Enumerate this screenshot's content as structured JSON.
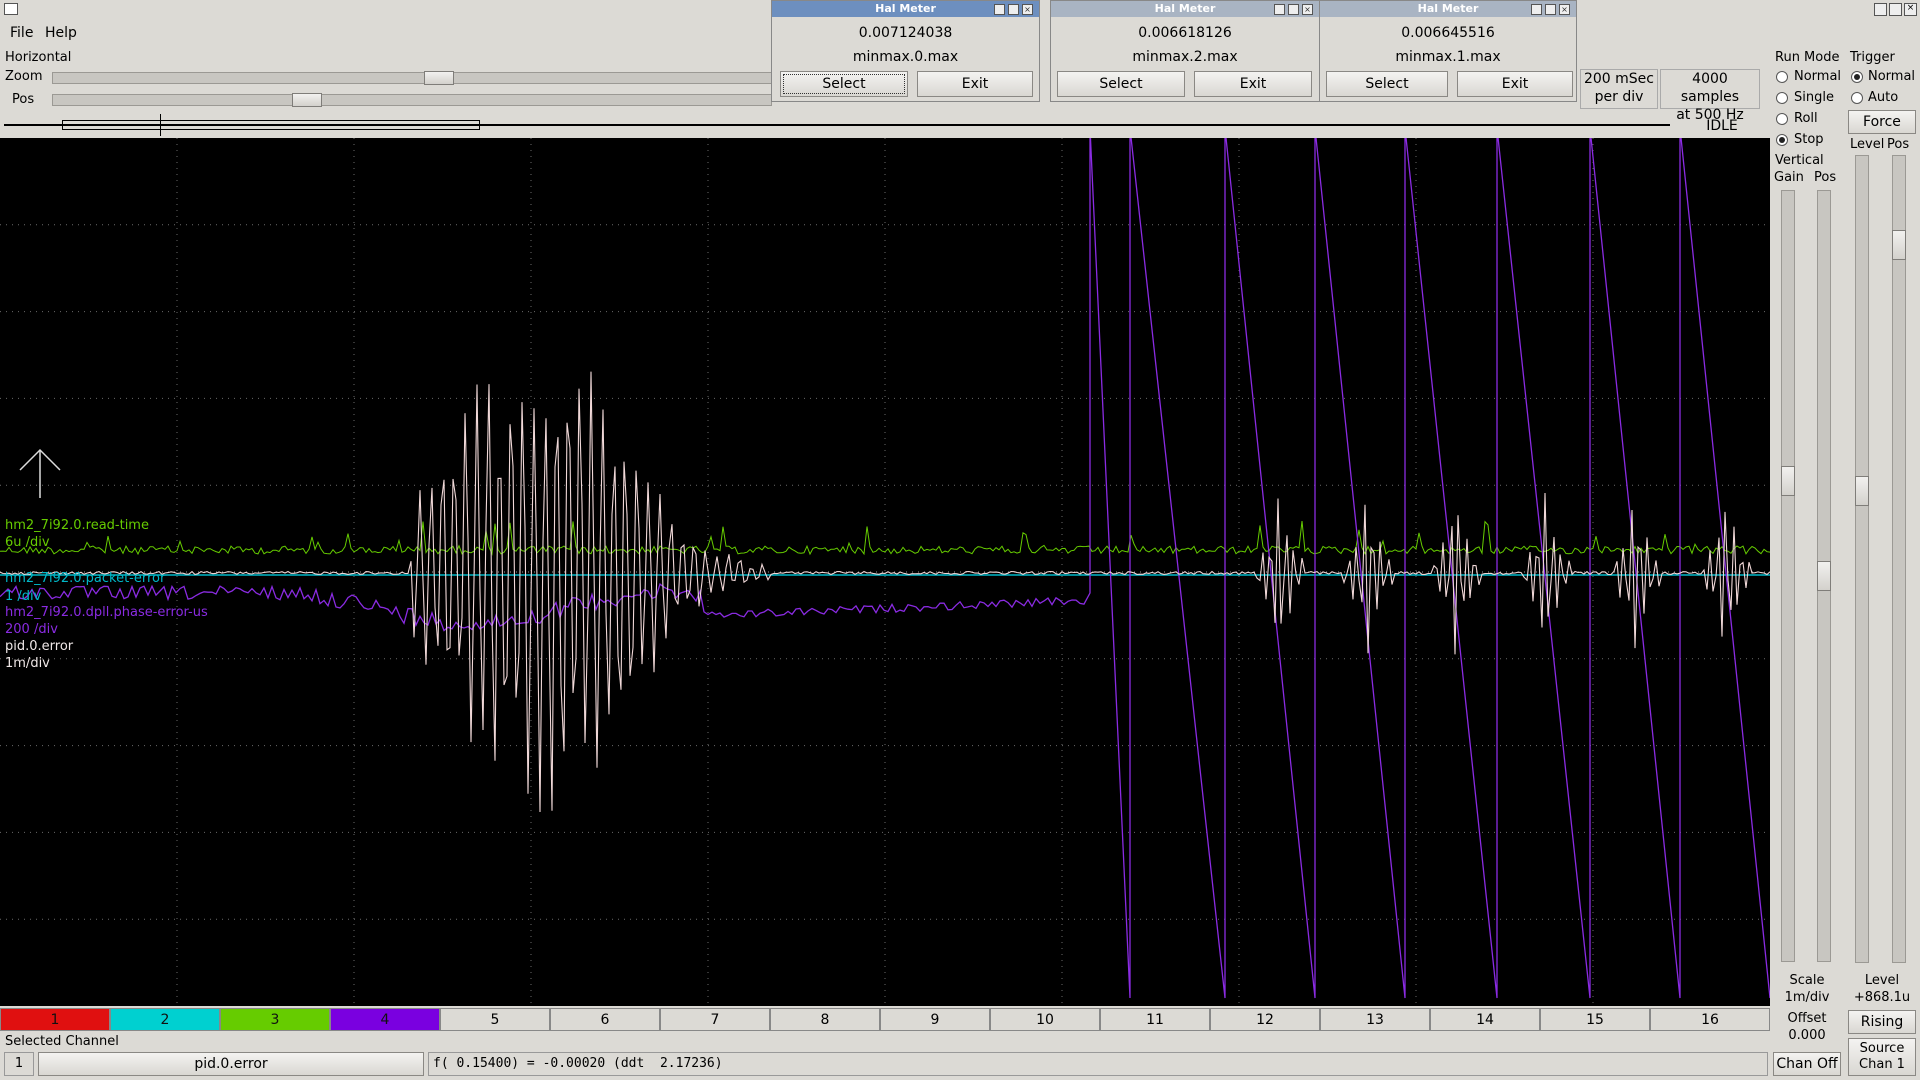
{
  "menu": {
    "file": "File",
    "help": "Help"
  },
  "horizontal": {
    "title": "Horizontal",
    "zoom_label": "Zoom",
    "pos_label": "Pos",
    "rate": [
      "200 mSec",
      "per div"
    ],
    "samples": [
      "4000 samples",
      "at 500 Hz"
    ],
    "status": "IDLE"
  },
  "hal_meters": [
    {
      "title": "Hal Meter",
      "value": "0.007124038",
      "pin": "minmax.0.max",
      "select": "Select",
      "exit": "Exit"
    },
    {
      "title": "Hal Meter",
      "value": "0.006618126",
      "pin": "minmax.2.max",
      "select": "Select",
      "exit": "Exit"
    },
    {
      "title": "Hal Meter",
      "value": "0.006645516",
      "pin": "minmax.1.max",
      "select": "Select",
      "exit": "Exit"
    }
  ],
  "run_mode": {
    "title": "Run Mode",
    "options": [
      "Normal",
      "Single",
      "Roll",
      "Stop"
    ],
    "selected": "Stop"
  },
  "trigger": {
    "title": "Trigger",
    "options": [
      "Normal",
      "Auto"
    ],
    "selected": "Normal",
    "force": "Force",
    "level_label": "Level",
    "pos_label": "Pos",
    "level_title": "Level",
    "level_value": "+868.1u",
    "edge": "Rising",
    "source": [
      "Source",
      "Chan 1"
    ]
  },
  "vertical": {
    "title": "Vertical",
    "gain_label": "Gain",
    "pos_label": "Pos",
    "scale_title": "Scale",
    "scale_value": "1m/div",
    "offset_title": "Offset",
    "offset_value": "0.000",
    "chan_off": "Chan Off"
  },
  "traces": [
    {
      "name": "hm2_7i92.0.read-time",
      "scale": "6u /div",
      "color": "#66cc00"
    },
    {
      "name": "hm2_7i92.0.packet-error",
      "scale": "1 /div",
      "color": "#00b8c8"
    },
    {
      "name": "hm2_7i92.0.dpll.phase-error-us",
      "scale": "200 /div",
      "color": "#8a2be2"
    },
    {
      "name": "pid.0.error",
      "scale": "1m/div",
      "color": "#f0d8d8"
    }
  ],
  "channels": [
    "1",
    "2",
    "3",
    "4",
    "5",
    "6",
    "7",
    "8",
    "9",
    "10",
    "11",
    "12",
    "13",
    "14",
    "15",
    "16"
  ],
  "channel_colors": [
    "#e01010",
    "#00d0d0",
    "#66cc00",
    "#7a00e0"
  ],
  "selected_channel": {
    "title": "Selected Channel",
    "number": "1",
    "name": "pid.0.error",
    "readout": "f( 0.15400) = -0.00020 (ddt  2.17236)"
  }
}
